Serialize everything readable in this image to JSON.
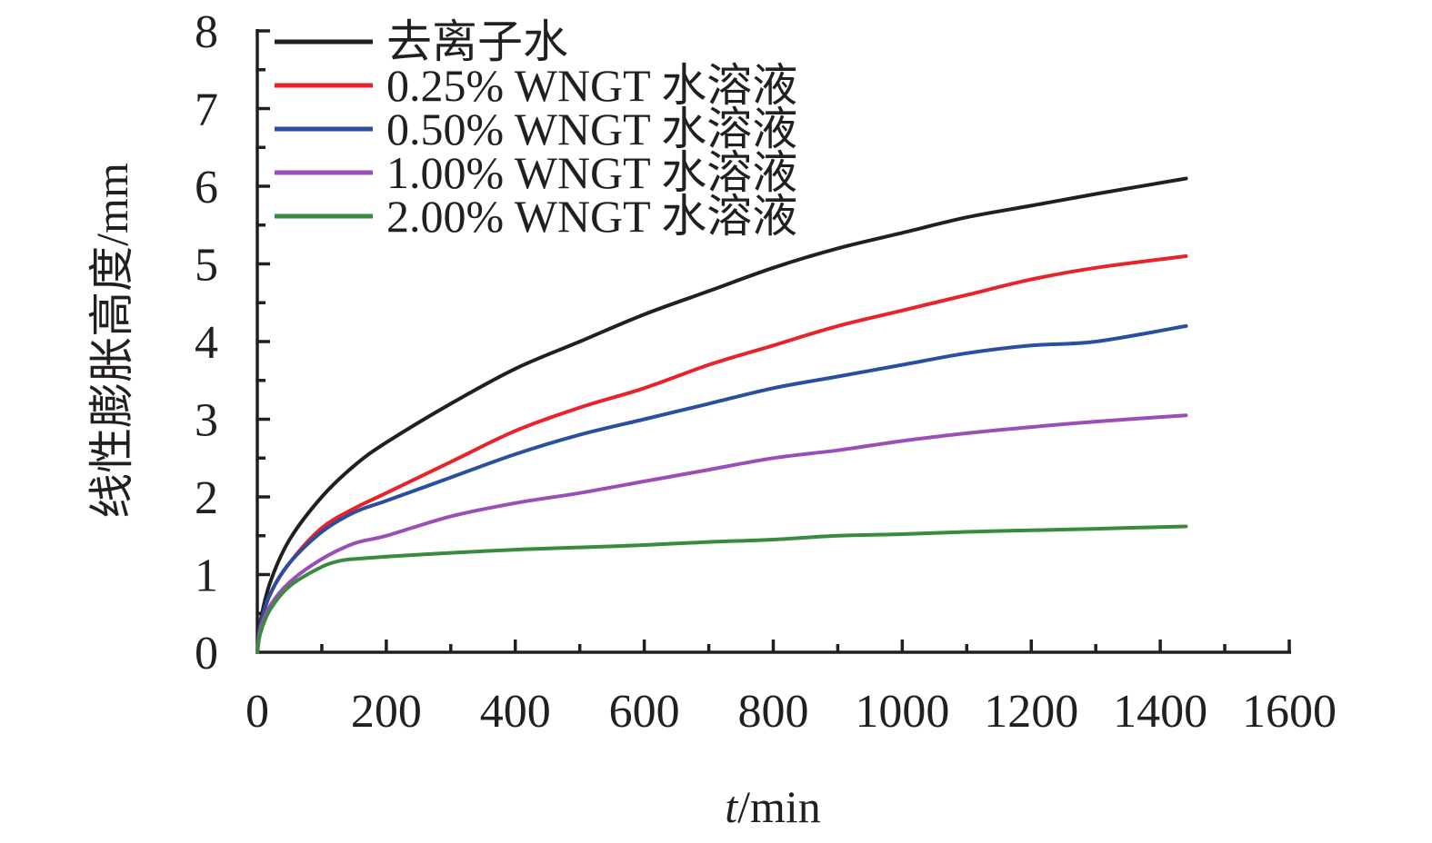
{
  "chart_data": {
    "type": "line",
    "xlabel_italic": "t",
    "xlabel_rest": "/min",
    "ylabel": "线性膨胀高度/mm",
    "xlim": [
      0,
      1600
    ],
    "ylim": [
      0,
      8
    ],
    "x_ticks": [
      "0",
      "200",
      "400",
      "600",
      "800",
      "1000",
      "1200",
      "1400",
      "1600"
    ],
    "y_ticks": [
      "0",
      "1",
      "2",
      "3",
      "4",
      "5",
      "6",
      "7",
      "8"
    ],
    "legend_position": "top-left",
    "series": [
      {
        "name": "去离子水",
        "color": "#231f20",
        "x": [
          0,
          5,
          20,
          50,
          100,
          150,
          200,
          300,
          400,
          500,
          600,
          700,
          800,
          900,
          1000,
          1100,
          1200,
          1300,
          1440
        ],
        "y": [
          0,
          0.4,
          0.9,
          1.45,
          2.0,
          2.4,
          2.7,
          3.2,
          3.65,
          4.0,
          4.35,
          4.65,
          4.95,
          5.2,
          5.4,
          5.6,
          5.75,
          5.9,
          6.1
        ]
      },
      {
        "name": "0.25% WNGT 水溶液",
        "color": "#e8232a",
        "x": [
          0,
          5,
          20,
          50,
          100,
          150,
          200,
          300,
          400,
          500,
          600,
          700,
          800,
          900,
          1000,
          1100,
          1200,
          1300,
          1440
        ],
        "y": [
          0,
          0.35,
          0.75,
          1.15,
          1.6,
          1.85,
          2.05,
          2.45,
          2.85,
          3.15,
          3.4,
          3.7,
          3.95,
          4.2,
          4.4,
          4.6,
          4.8,
          4.95,
          5.1
        ]
      },
      {
        "name": "0.50% WNGT 水溶液",
        "color": "#2a4ea0",
        "x": [
          0,
          5,
          20,
          50,
          100,
          150,
          200,
          300,
          400,
          500,
          600,
          700,
          800,
          900,
          1000,
          1100,
          1200,
          1300,
          1440
        ],
        "y": [
          0,
          0.35,
          0.75,
          1.15,
          1.55,
          1.8,
          1.95,
          2.25,
          2.55,
          2.8,
          3.0,
          3.2,
          3.4,
          3.55,
          3.7,
          3.85,
          3.95,
          4.0,
          4.2
        ]
      },
      {
        "name": "1.00% WNGT 水溶液",
        "color": "#9b4eb8",
        "x": [
          0,
          5,
          20,
          50,
          100,
          150,
          200,
          300,
          400,
          500,
          600,
          700,
          800,
          900,
          1000,
          1100,
          1200,
          1300,
          1440
        ],
        "y": [
          0,
          0.3,
          0.6,
          0.9,
          1.2,
          1.4,
          1.5,
          1.75,
          1.92,
          2.05,
          2.2,
          2.35,
          2.5,
          2.6,
          2.72,
          2.82,
          2.9,
          2.97,
          3.05
        ]
      },
      {
        "name": "2.00% WNGT 水溶液",
        "color": "#3a8a3f",
        "x": [
          0,
          5,
          20,
          50,
          100,
          130,
          150,
          200,
          300,
          400,
          500,
          600,
          700,
          800,
          900,
          1000,
          1100,
          1200,
          1300,
          1440
        ],
        "y": [
          0,
          0.25,
          0.55,
          0.85,
          1.1,
          1.18,
          1.2,
          1.23,
          1.28,
          1.32,
          1.35,
          1.38,
          1.42,
          1.45,
          1.5,
          1.52,
          1.55,
          1.57,
          1.59,
          1.62
        ]
      }
    ]
  }
}
